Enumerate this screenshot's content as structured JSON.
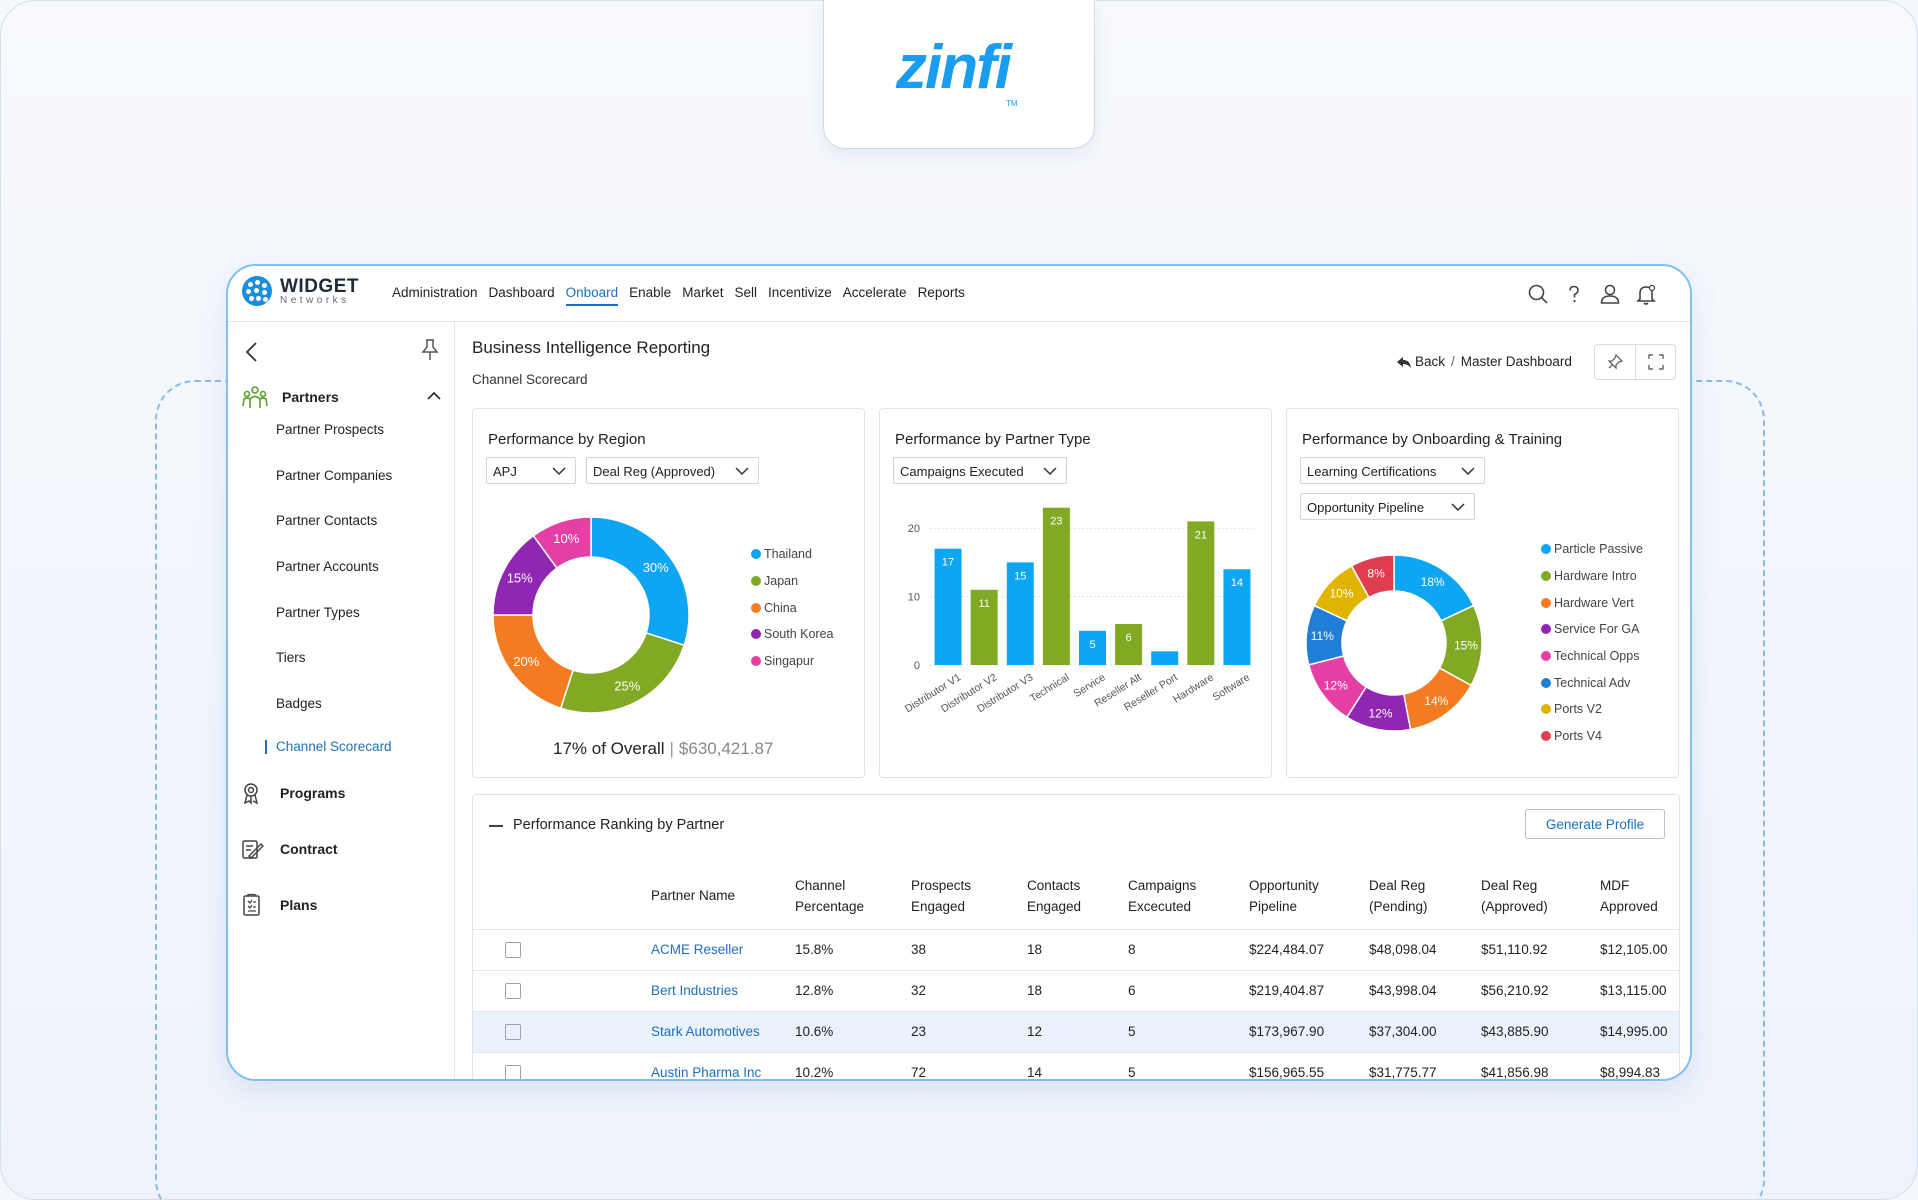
{
  "brand_logo": {
    "text": "zinfi",
    "tm": "TM"
  },
  "app": {
    "brand": {
      "name": "WIDGET",
      "sub": "Networks"
    },
    "nav": [
      {
        "label": "Administration"
      },
      {
        "label": "Dashboard"
      },
      {
        "label": "Onboard",
        "active": true
      },
      {
        "label": "Enable"
      },
      {
        "label": "Market"
      },
      {
        "label": "Sell"
      },
      {
        "label": "Incentivize"
      },
      {
        "label": "Accelerate"
      },
      {
        "label": "Reports"
      }
    ],
    "topbar_icons": [
      "search-icon",
      "help-icon",
      "user-icon",
      "bell-icon"
    ]
  },
  "sidebar": {
    "group": {
      "label": "Partners",
      "icon": "partners-icon",
      "expanded": true
    },
    "sub_items": [
      {
        "label": "Partner Prospects"
      },
      {
        "label": "Partner Companies"
      },
      {
        "label": "Partner Contacts"
      },
      {
        "label": "Partner Accounts"
      },
      {
        "label": "Partner Types"
      },
      {
        "label": "Tiers"
      },
      {
        "label": "Badges"
      },
      {
        "label": "Channel Scorecard",
        "active": true
      }
    ],
    "main_items": [
      {
        "label": "Programs",
        "icon": "programs-icon"
      },
      {
        "label": "Contract",
        "icon": "contract-icon"
      },
      {
        "label": "Plans",
        "icon": "plans-icon"
      }
    ]
  },
  "page": {
    "title": "Business Intelligence Reporting",
    "subtitle": "Channel Scorecard",
    "breadcrumb": {
      "back": "Back",
      "sep": "/",
      "current": "Master Dashboard"
    }
  },
  "cards": {
    "region": {
      "title": "Performance by Region",
      "selects": [
        "APJ",
        "Deal Reg (Approved)"
      ],
      "overall_text": "17% of Overall",
      "overall_amount": "$630,421.87"
    },
    "partner_type": {
      "title": "Performance by Partner Type",
      "selects": [
        "Campaigns Executed"
      ]
    },
    "onboarding": {
      "title": "Performance by Onboarding & Training",
      "selects": [
        "Learning Certifications",
        "Opportunity Pipeline"
      ]
    }
  },
  "chart_data": [
    {
      "type": "pie",
      "variant": "donut",
      "labels": [
        "Thailand",
        "Japan",
        "China",
        "South Korea",
        "Singapur"
      ],
      "values": [
        30,
        25,
        20,
        15,
        10
      ],
      "value_labels": [
        "30%",
        "25%",
        "20%",
        "15%",
        "10%"
      ],
      "colors": [
        "#0ea5f2",
        "#82a923",
        "#f37b22",
        "#8f27b3",
        "#e53fa5"
      ],
      "legend_position": "right"
    },
    {
      "type": "bar",
      "categories": [
        "Distributor V1",
        "Distributor V2",
        "Distributor V3",
        "Technical",
        "Service",
        "Reseller Alt",
        "Reseller Port",
        "Hardware",
        "Software"
      ],
      "series": [
        {
          "values": [
            17,
            11,
            15,
            23,
            5,
            6,
            2,
            21,
            14
          ]
        }
      ],
      "value_labels": [
        "17",
        "11",
        "15",
        "23",
        "5",
        "6",
        "",
        "21",
        "14"
      ],
      "bar_colors": [
        "#0ea5f2",
        "#82a923",
        "#0ea5f2",
        "#82a923",
        "#0ea5f2",
        "#82a923",
        "#0ea5f2",
        "#82a923",
        "#0ea5f2"
      ],
      "yticks": [
        0,
        10,
        20
      ],
      "ylim": [
        0,
        25
      ],
      "grid": true
    },
    {
      "type": "pie",
      "variant": "donut",
      "labels": [
        "Particle Passive",
        "Hardware Intro",
        "Hardware Vert",
        "Service For GA",
        "Technical Opps",
        "Technical Adv",
        "Ports V2",
        "Ports V4"
      ],
      "values": [
        18,
        15,
        14,
        12,
        12,
        11,
        10,
        8
      ],
      "value_labels": [
        "18%",
        "15%",
        "14%",
        "12%",
        "12%",
        "11%",
        "10%",
        "8%"
      ],
      "colors": [
        "#0ea5f2",
        "#82a923",
        "#f37b22",
        "#8f27b3",
        "#e53fa5",
        "#1f7fd6",
        "#e0b400",
        "#e23d4f"
      ],
      "legend_position": "right"
    }
  ],
  "ranking": {
    "title": "Performance Ranking by Partner",
    "button": "Generate Profile",
    "columns": [
      [
        "Partner Name"
      ],
      [
        "Channel",
        "Percentage"
      ],
      [
        "Prospects",
        "Engaged"
      ],
      [
        "Contacts",
        "Engaged"
      ],
      [
        "Campaigns",
        "Excecuted"
      ],
      [
        "Opportunity",
        "Pipeline"
      ],
      [
        "Deal Reg",
        "(Pending)"
      ],
      [
        "Deal Reg",
        "(Approved)"
      ],
      [
        "MDF",
        "Approved"
      ]
    ],
    "rows": [
      [
        "ACME Reseller",
        "15.8%",
        "38",
        "18",
        "8",
        "$224,484.07",
        "$48,098.04",
        "$51,110.92",
        "$12,105.00"
      ],
      [
        "Bert Industries",
        "12.8%",
        "32",
        "18",
        "6",
        "$219,404.87",
        "$43,998.04",
        "$56,210.92",
        "$13,115.00"
      ],
      [
        "Stark Automotives",
        "10.6%",
        "23",
        "12",
        "5",
        "$173,967.90",
        "$37,304.00",
        "$43,885.90",
        "$14,995.00"
      ],
      [
        "Austin Pharma Inc",
        "10.2%",
        "72",
        "14",
        "5",
        "$156,965.55",
        "$31,775.77",
        "$41,856.98",
        "$8,994.83"
      ]
    ],
    "highlighted_row": 2
  }
}
